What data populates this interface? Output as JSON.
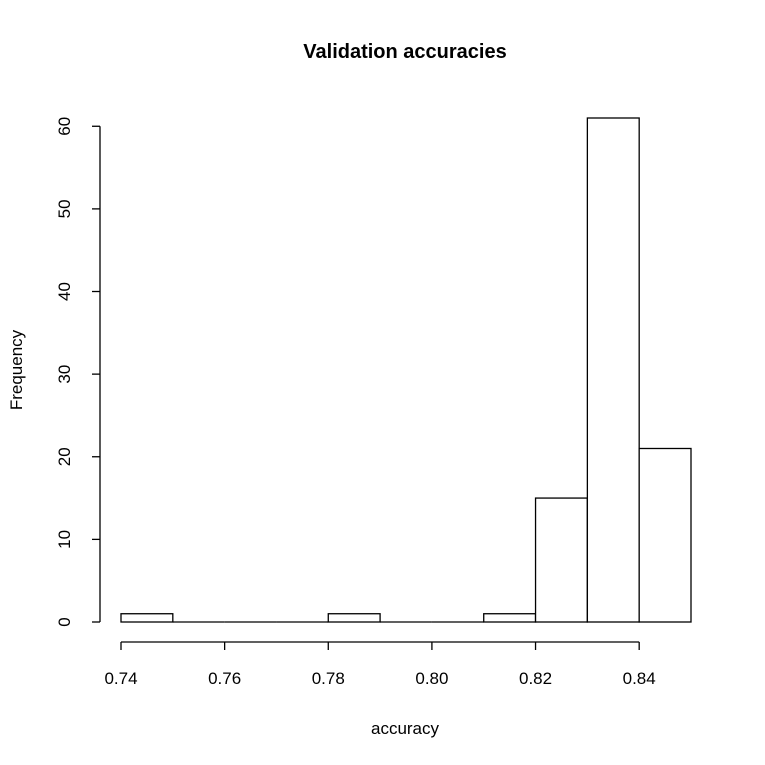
{
  "chart_data": {
    "type": "bar",
    "title": "Validation accuracies",
    "xlabel": "accuracy",
    "ylabel": "Frequency",
    "bins": [
      {
        "start": 0.74,
        "end": 0.75,
        "count": 1
      },
      {
        "start": 0.75,
        "end": 0.76,
        "count": 0
      },
      {
        "start": 0.76,
        "end": 0.77,
        "count": 0
      },
      {
        "start": 0.77,
        "end": 0.78,
        "count": 0
      },
      {
        "start": 0.78,
        "end": 0.79,
        "count": 1
      },
      {
        "start": 0.79,
        "end": 0.8,
        "count": 0
      },
      {
        "start": 0.8,
        "end": 0.81,
        "count": 0
      },
      {
        "start": 0.81,
        "end": 0.82,
        "count": 1
      },
      {
        "start": 0.82,
        "end": 0.83,
        "count": 15
      },
      {
        "start": 0.83,
        "end": 0.84,
        "count": 61
      },
      {
        "start": 0.84,
        "end": 0.85,
        "count": 21
      }
    ],
    "xlim": [
      0.74,
      0.85
    ],
    "ylim": [
      0,
      61
    ],
    "x_ticks": [
      0.74,
      0.76,
      0.78,
      0.8,
      0.82,
      0.84
    ],
    "x_tick_labels": [
      "0.74",
      "0.76",
      "0.78",
      "0.80",
      "0.82",
      "0.84"
    ],
    "y_ticks": [
      0,
      10,
      20,
      30,
      40,
      50,
      60
    ],
    "y_tick_labels": [
      "0",
      "10",
      "20",
      "30",
      "40",
      "50",
      "60"
    ],
    "grid": false,
    "colors": {
      "bar_fill": "#ffffff",
      "bar_stroke": "#000000"
    }
  }
}
